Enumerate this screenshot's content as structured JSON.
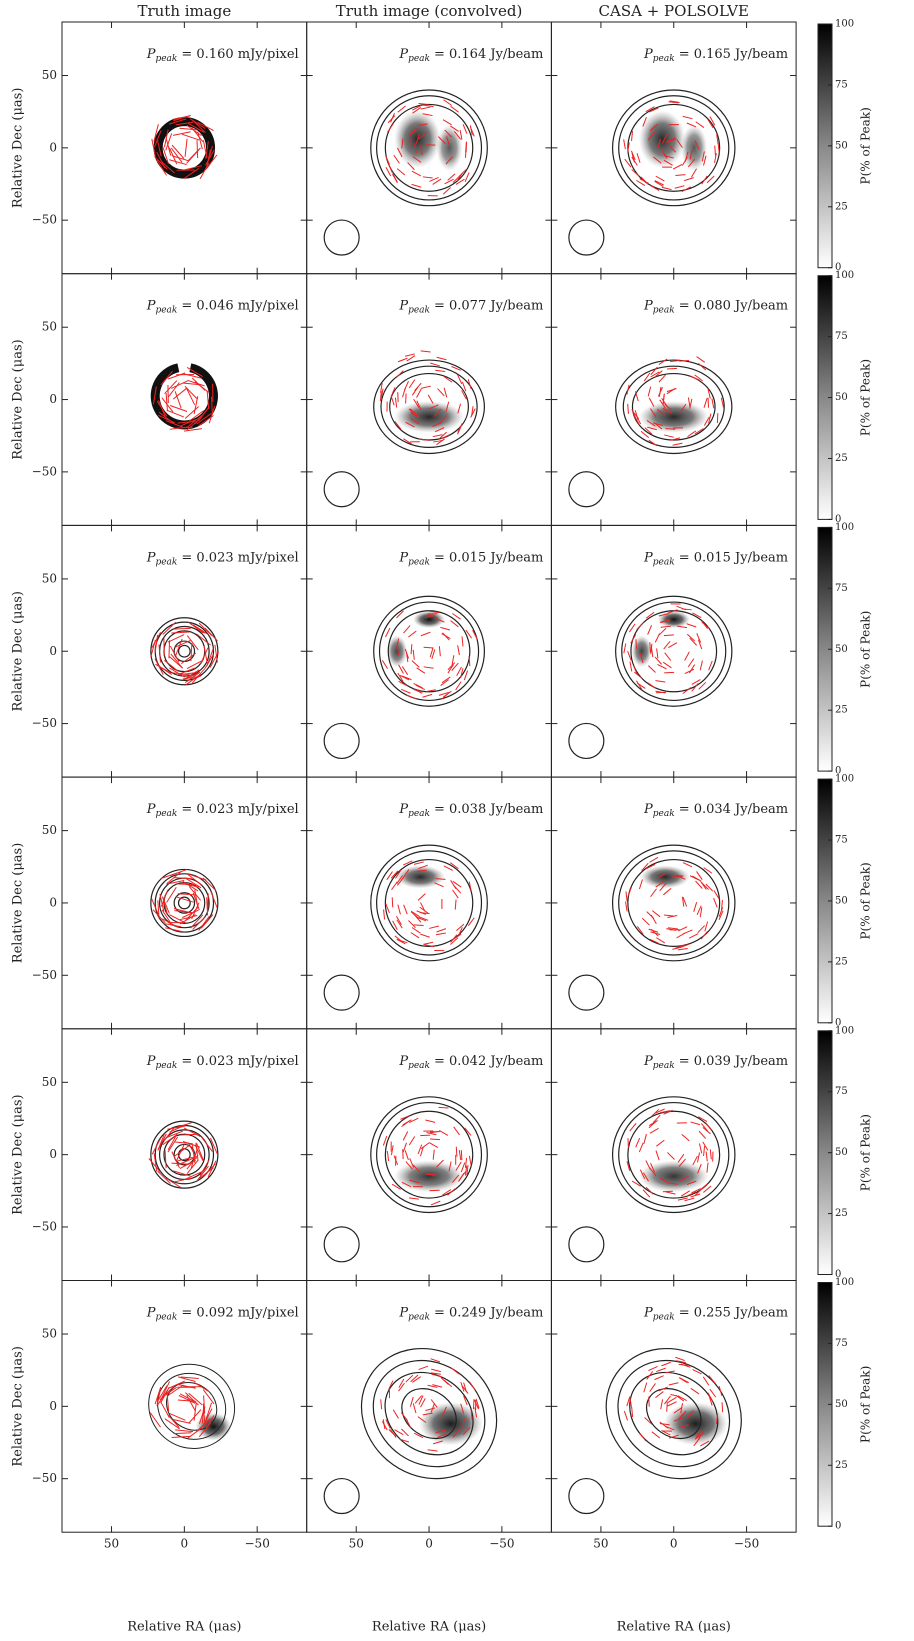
{
  "chart_data": {
    "type": "image-grid",
    "columns": [
      "Truth image",
      "Truth image (convolved)",
      "CASA + POLSOLVE"
    ],
    "xlabel": "Relative RA (μas)",
    "ylabel": "Relative Dec (μas)",
    "xlim": [
      84,
      -84
    ],
    "xticks": [
      50,
      0,
      {
        "value": -50,
        "label": "−50"
      }
    ],
    "ylim": [
      -87,
      87
    ],
    "yticks": [
      {
        "value": -50,
        "label": "−50"
      },
      0,
      50
    ],
    "peak_symbol": "P",
    "peak_subscript": "peak",
    "rows": [
      {
        "peaks": [
          "= 0.160 mJy/pixel",
          "= 0.164 Jy/beam",
          "= 0.165 Jy/beam"
        ]
      },
      {
        "peaks": [
          "= 0.046 mJy/pixel",
          "= 0.077 Jy/beam",
          "= 0.080 Jy/beam"
        ]
      },
      {
        "peaks": [
          "= 0.023 mJy/pixel",
          "= 0.015 Jy/beam",
          "= 0.015 Jy/beam"
        ]
      },
      {
        "peaks": [
          "= 0.023 mJy/pixel",
          "= 0.038 Jy/beam",
          "= 0.034 Jy/beam"
        ]
      },
      {
        "peaks": [
          "= 0.023 mJy/pixel",
          "= 0.042 Jy/beam",
          "= 0.039 Jy/beam"
        ]
      },
      {
        "peaks": [
          "= 0.092 mJy/pixel",
          "= 0.249 Jy/beam",
          "= 0.255 Jy/beam"
        ]
      }
    ],
    "colorbar": {
      "label": "P(% of Peak)",
      "lim": [
        0,
        100
      ],
      "ticks": [
        0,
        25,
        50,
        75,
        100
      ]
    }
  }
}
